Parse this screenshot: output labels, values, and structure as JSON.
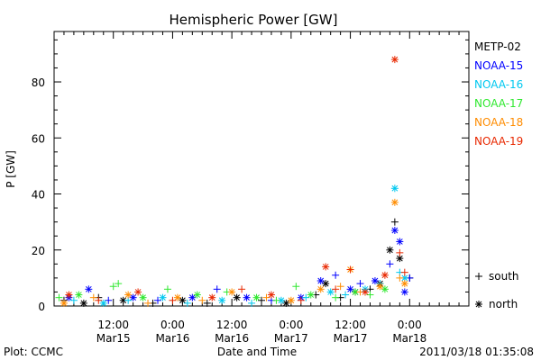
{
  "chart_data": {
    "type": "scatter",
    "title": "Hemispheric Power [GW]",
    "xlabel": "Date and Time",
    "ylabel": "P [GW]",
    "ylim": [
      0,
      98
    ],
    "xlim_hours": [
      0,
      84
    ],
    "yticks": [
      0,
      20,
      40,
      60,
      80
    ],
    "xticks": [
      {
        "hour": 12,
        "line1": "12:00",
        "line2": "Mar15"
      },
      {
        "hour": 24,
        "line1": "0:00",
        "line2": "Mar16"
      },
      {
        "hour": 36,
        "line1": "12:00",
        "line2": "Mar16"
      },
      {
        "hour": 48,
        "line1": "0:00",
        "line2": "Mar17"
      },
      {
        "hour": 60,
        "line1": "12:00",
        "line2": "Mar17"
      },
      {
        "hour": 72,
        "line1": "0:00",
        "line2": "Mar18"
      }
    ],
    "legend_placement": "right",
    "marker_legend": [
      {
        "symbol": "+",
        "label": "south"
      },
      {
        "symbol": "*",
        "label": "north"
      }
    ],
    "series": [
      {
        "name": "METP-02",
        "color": "#000000",
        "points": [
          [
            2,
            2,
            "+"
          ],
          [
            6,
            1,
            "*"
          ],
          [
            9,
            3,
            "+"
          ],
          [
            14,
            2,
            "*"
          ],
          [
            20,
            1,
            "+"
          ],
          [
            26,
            2,
            "*"
          ],
          [
            31,
            1,
            "+"
          ],
          [
            37,
            3,
            "*"
          ],
          [
            42,
            2,
            "+"
          ],
          [
            47,
            1,
            "*"
          ],
          [
            53,
            4,
            "+"
          ],
          [
            55,
            8,
            "*"
          ],
          [
            58,
            3,
            "+"
          ],
          [
            61,
            5,
            "*"
          ],
          [
            64,
            6,
            "+"
          ],
          [
            66,
            8,
            "*"
          ],
          [
            68,
            20,
            "*"
          ],
          [
            69,
            30,
            "+"
          ],
          [
            70,
            17,
            "*"
          ],
          [
            72,
            10,
            "+"
          ]
        ]
      },
      {
        "name": "NOAA-15",
        "color": "#0000ff",
        "points": [
          [
            3,
            3,
            "*"
          ],
          [
            7,
            6,
            "*"
          ],
          [
            11,
            2,
            "+"
          ],
          [
            16,
            3,
            "*"
          ],
          [
            21,
            2,
            "+"
          ],
          [
            28,
            3,
            "*"
          ],
          [
            33,
            6,
            "+"
          ],
          [
            39,
            3,
            "*"
          ],
          [
            44,
            2,
            "+"
          ],
          [
            50,
            3,
            "*"
          ],
          [
            54,
            9,
            "*"
          ],
          [
            57,
            11,
            "+"
          ],
          [
            60,
            6,
            "*"
          ],
          [
            62,
            8,
            "+"
          ],
          [
            65,
            9,
            "*"
          ],
          [
            68,
            15,
            "+"
          ],
          [
            69,
            27,
            "*"
          ],
          [
            70,
            23,
            "*"
          ],
          [
            71,
            5,
            "*"
          ],
          [
            72,
            10,
            "+"
          ]
        ]
      },
      {
        "name": "NOAA-16",
        "color": "#00c8f0",
        "points": [
          [
            4,
            2,
            "+"
          ],
          [
            10,
            1,
            "*"
          ],
          [
            15,
            2,
            "+"
          ],
          [
            22,
            3,
            "*"
          ],
          [
            27,
            1,
            "+"
          ],
          [
            34,
            2,
            "*"
          ],
          [
            40,
            1,
            "+"
          ],
          [
            46,
            2,
            "*"
          ],
          [
            51,
            3,
            "+"
          ],
          [
            56,
            5,
            "*"
          ],
          [
            59,
            4,
            "+"
          ],
          [
            63,
            6,
            "*"
          ],
          [
            66,
            8,
            "+"
          ],
          [
            69,
            42,
            "*"
          ],
          [
            70,
            12,
            "+"
          ],
          [
            71,
            10,
            "*"
          ]
        ]
      },
      {
        "name": "NOAA-17",
        "color": "#30e830",
        "points": [
          [
            1,
            3,
            "+"
          ],
          [
            5,
            4,
            "*"
          ],
          [
            12,
            7,
            "+"
          ],
          [
            13,
            8,
            "+"
          ],
          [
            18,
            3,
            "*"
          ],
          [
            23,
            6,
            "+"
          ],
          [
            29,
            4,
            "*"
          ],
          [
            35,
            5,
            "+"
          ],
          [
            41,
            3,
            "*"
          ],
          [
            45,
            2,
            "+"
          ],
          [
            49,
            7,
            "+"
          ],
          [
            52,
            4,
            "*"
          ],
          [
            57,
            3,
            "+"
          ],
          [
            61,
            5,
            "*"
          ],
          [
            64,
            4,
            "+"
          ],
          [
            67,
            6,
            "*"
          ]
        ]
      },
      {
        "name": "NOAA-18",
        "color": "#ff8c00",
        "points": [
          [
            2,
            1,
            "*"
          ],
          [
            8,
            3,
            "+"
          ],
          [
            15,
            4,
            "*"
          ],
          [
            19,
            1,
            "+"
          ],
          [
            25,
            3,
            "*"
          ],
          [
            30,
            2,
            "+"
          ],
          [
            36,
            5,
            "*"
          ],
          [
            43,
            3,
            "+"
          ],
          [
            48,
            2,
            "*"
          ],
          [
            54,
            6,
            "*"
          ],
          [
            58,
            7,
            "+"
          ],
          [
            60,
            13,
            "*"
          ],
          [
            62,
            5,
            "+"
          ],
          [
            66,
            7,
            "*"
          ],
          [
            69,
            37,
            "*"
          ],
          [
            70,
            10,
            "+"
          ],
          [
            71,
            8,
            "*"
          ]
        ]
      },
      {
        "name": "NOAA-19",
        "color": "#e82800",
        "points": [
          [
            3,
            4,
            "*"
          ],
          [
            9,
            2,
            "+"
          ],
          [
            17,
            5,
            "*"
          ],
          [
            24,
            2,
            "+"
          ],
          [
            32,
            3,
            "*"
          ],
          [
            38,
            6,
            "+"
          ],
          [
            44,
            4,
            "*"
          ],
          [
            50,
            2,
            "+"
          ],
          [
            55,
            14,
            "*"
          ],
          [
            57,
            6,
            "+"
          ],
          [
            60,
            13,
            "+"
          ],
          [
            63,
            5,
            "*"
          ],
          [
            67,
            11,
            "*"
          ],
          [
            69,
            88,
            "*"
          ],
          [
            70,
            19,
            "+"
          ],
          [
            71,
            12,
            "+"
          ]
        ]
      }
    ]
  },
  "footer": {
    "left": "Plot: CCMC",
    "right": "2011/03/18 01:35:08"
  }
}
